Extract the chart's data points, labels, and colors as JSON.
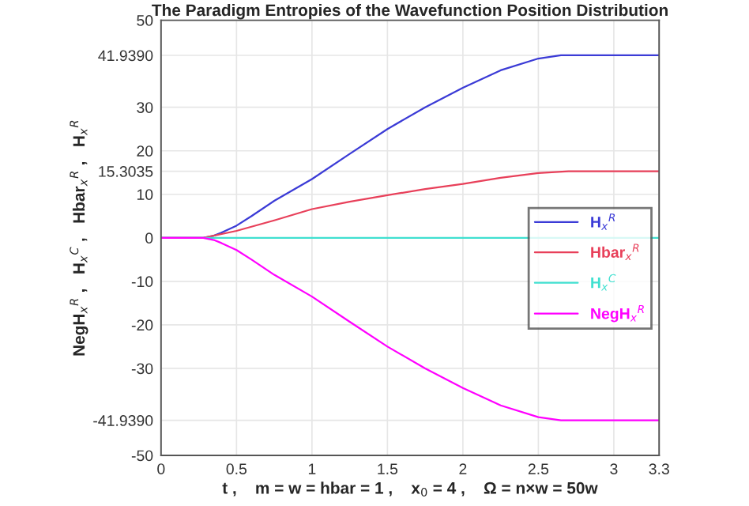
{
  "chart_data": {
    "type": "line",
    "title": "The Paradigm Entropies of the Wavefunction Position Distribution",
    "xlabel": "t ,    m = w = hbar = 1 ,    x$_{0}$ = 4 ,    Ω = n×w = 50w",
    "ylabel": "NegH$_{x}$$^{R}$ ,   H$_{x}$$^{C}$ ,   Hbar$_{x}$$^{R}$ ,   H$_{x}$$^{R}$",
    "series": [
      {
        "name": "H$_{x}$$^{R}$",
        "color": "#3b3bd6",
        "x": [
          0,
          0.28,
          0.35,
          0.4,
          0.5,
          0.6,
          0.75,
          1,
          1.25,
          1.5,
          1.75,
          2,
          2.25,
          2.5,
          2.65,
          3.3
        ],
        "values": [
          0,
          0,
          0.5,
          1.2,
          2.8,
          5,
          8.5,
          13.5,
          19.3,
          25,
          30,
          34.5,
          38.5,
          41.2,
          41.939,
          41.939
        ]
      },
      {
        "name": "Hbar$_{x}$$^{R}$",
        "color": "#e8405a",
        "x": [
          0,
          0.28,
          0.5,
          0.75,
          1,
          1.25,
          1.5,
          1.75,
          2,
          2.25,
          2.5,
          2.7,
          3.3
        ],
        "values": [
          0,
          0,
          1.6,
          4,
          6.6,
          8.3,
          9.8,
          11.2,
          12.4,
          13.8,
          14.9,
          15.3035,
          15.3035
        ]
      },
      {
        "name": "H$_{x}$$^{C}$",
        "color": "#40e0d0",
        "x": [
          0,
          3.3
        ],
        "values": [
          0,
          0
        ]
      },
      {
        "name": "NegH$_{x}$$^{R}$",
        "color": "#ff00ff",
        "x": [
          0,
          0.28,
          0.35,
          0.4,
          0.5,
          0.6,
          0.75,
          1,
          1.25,
          1.5,
          1.75,
          2,
          2.25,
          2.5,
          2.65,
          3.3
        ],
        "values": [
          0,
          0,
          -0.5,
          -1.2,
          -2.8,
          -5,
          -8.5,
          -13.5,
          -19.3,
          -25,
          -30,
          -34.5,
          -38.5,
          -41.2,
          -41.939,
          -41.939
        ]
      }
    ],
    "xlim": [
      0,
      3.3
    ],
    "xticks": [
      0,
      0.5,
      1,
      1.5,
      2,
      2.5,
      3,
      3.3
    ],
    "ylim": [
      -50,
      50
    ],
    "yticks": [
      -50,
      {
        "value": -41.939,
        "label": "-41.9390"
      },
      -30,
      -20,
      -10,
      0,
      10,
      {
        "value": 15.3035,
        "label": "15.3035"
      },
      20,
      30,
      {
        "value": 41.939,
        "label": "41.9390"
      },
      50
    ],
    "grid": true,
    "legend": "right",
    "marker": "none",
    "line_style": "solid"
  }
}
